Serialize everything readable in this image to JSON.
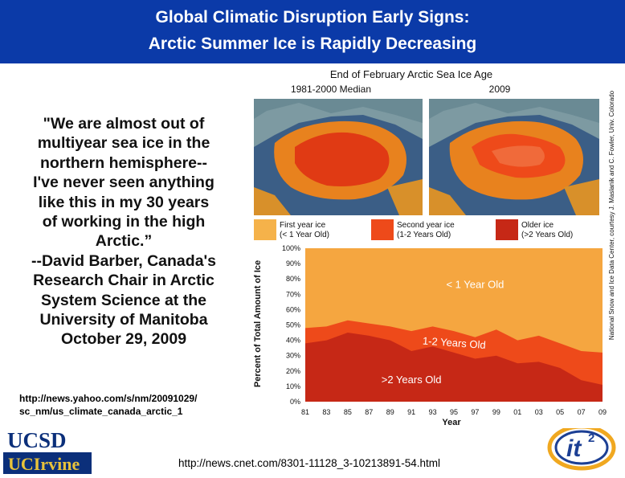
{
  "slide": {
    "title_line1": "Global Climatic Disruption Early Signs:",
    "title_line2": "Arctic Summer Ice is Rapidly Decreasing",
    "quote_lines": [
      "\"We are almost out of",
      "multiyear sea ice in the",
      "northern hemisphere--",
      "I've never seen anything",
      "like this in my 30 years",
      "of working in the high",
      "Arctic.”",
      "--David Barber, Canada's",
      "Research Chair in Arctic",
      "System Science at the",
      "University of Manitoba",
      "October 29, 2009"
    ],
    "link1_line1": "http://news.yahoo.com/s/nm/20091029/",
    "link1_line2": "sc_nm/us_climate_canada_arctic_1",
    "link2": "http://news.cnet.com/8301-11128_3-10213891-54.html",
    "logo_ucsd": "UCSD",
    "logo_ucirvine": "UCIrvine",
    "logo_it2": "it",
    "logo_it2_sup": "2"
  },
  "figure": {
    "title": "End of February Arctic Sea Ice Age",
    "map_left_label": "1981-2000 Median",
    "map_right_label": "2009",
    "legend": [
      {
        "label": "First year ice",
        "sub": "(< 1 Year Old)",
        "color": "#f5b24a"
      },
      {
        "label": "Second year ice",
        "sub": "(1-2 Years Old)",
        "color": "#ee4a1a"
      },
      {
        "label": "Older ice",
        "sub": "(>2 Years Old)",
        "color": "#c62816"
      }
    ],
    "credit": "National Snow and Ice Data Center, courtesy J. Maslanik and C. Fowler, Univ. Colorado"
  },
  "chart_data": {
    "type": "area",
    "ylabel": "Percent of Total Amount of Ice",
    "xlabel": "Year",
    "ylim": [
      0,
      100
    ],
    "yticks": [
      "0%",
      "10%",
      "20%",
      "30%",
      "40%",
      "50%",
      "60%",
      "70%",
      "80%",
      "90%",
      "100%"
    ],
    "xticks": [
      "81",
      "83",
      "85",
      "87",
      "89",
      "91",
      "93",
      "95",
      "97",
      "99",
      "01",
      "03",
      "05",
      "07",
      "09"
    ],
    "x": [
      1981,
      1983,
      1985,
      1987,
      1989,
      1991,
      1993,
      1995,
      1997,
      1999,
      2001,
      2003,
      2005,
      2007,
      2009
    ],
    "series": [
      {
        "name": ">2 Years Old",
        "values": [
          38,
          40,
          45,
          43,
          40,
          33,
          36,
          32,
          28,
          30,
          25,
          26,
          22,
          14,
          11
        ],
        "color": "#c62816"
      },
      {
        "name": "1-2 Years Old",
        "values": [
          48,
          49,
          53,
          51,
          49,
          46,
          49,
          46,
          42,
          47,
          40,
          43,
          38,
          33,
          32
        ],
        "color": "#ee4a1a"
      },
      {
        "name": "< 1 Year Old",
        "values": [
          100,
          100,
          100,
          100,
          100,
          100,
          100,
          100,
          100,
          100,
          100,
          100,
          100,
          100,
          100
        ],
        "color": "#f5a640"
      }
    ],
    "series_labels": {
      "top": "< 1 Year Old",
      "middle": "1-2 Years Old",
      "bottom": ">2 Years Old"
    }
  }
}
